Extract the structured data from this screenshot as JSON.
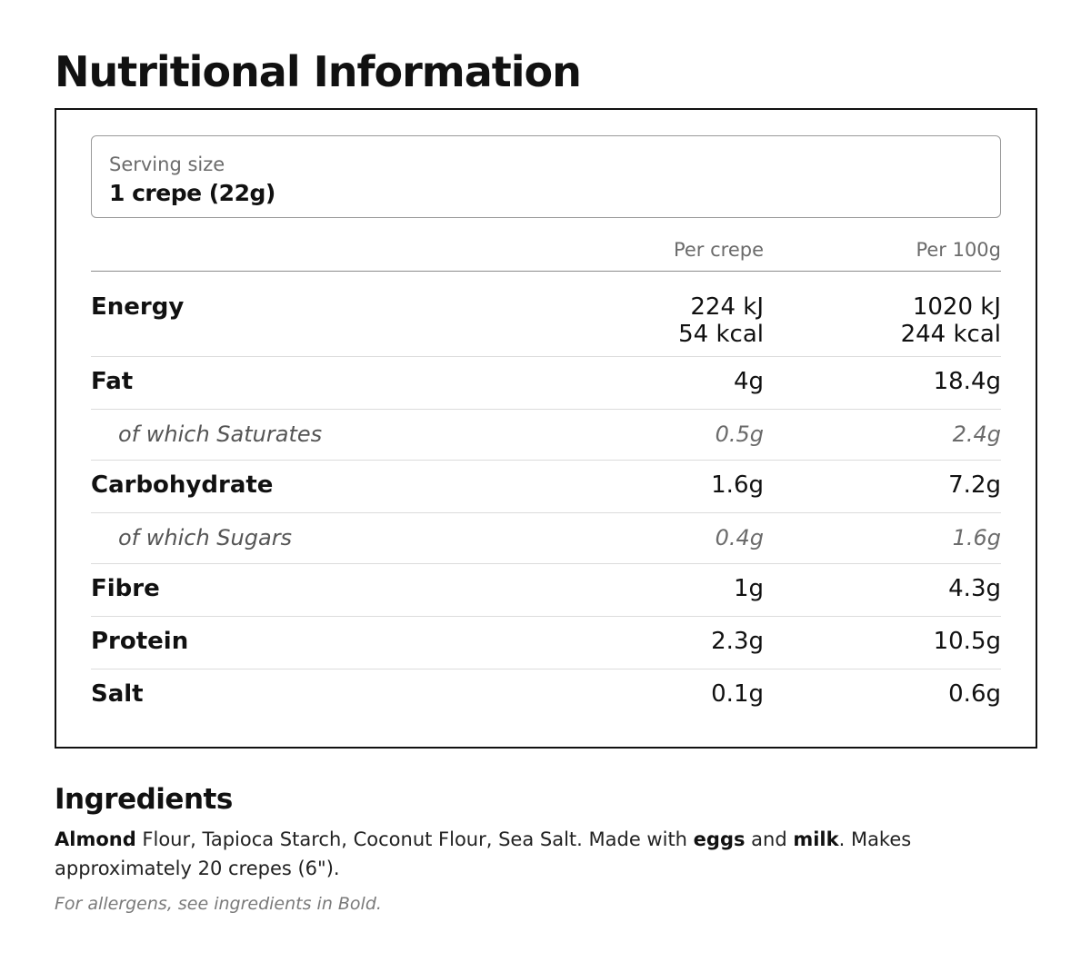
{
  "page_title": "Nutritional Information",
  "serving": {
    "label": "Serving size",
    "value": "1 crepe (22g)"
  },
  "table": {
    "col1_header": "Per crepe",
    "col2_header": "Per 100g",
    "energy": {
      "label": "Energy",
      "per_crepe_kj": "224 kJ",
      "per_crepe_kcal": "54 kcal",
      "per_100g_kj": "1020 kJ",
      "per_100g_kcal": "244 kcal"
    },
    "fat": {
      "label": "Fat",
      "per_crepe": "4g",
      "per_100g": "18.4g"
    },
    "saturates": {
      "label": "of which Saturates",
      "per_crepe": "0.5g",
      "per_100g": "2.4g"
    },
    "carbohydrate": {
      "label": "Carbohydrate",
      "per_crepe": "1.6g",
      "per_100g": "7.2g"
    },
    "sugars": {
      "label": "of which Sugars",
      "per_crepe": "0.4g",
      "per_100g": "1.6g"
    },
    "fibre": {
      "label": "Fibre",
      "per_crepe": "1g",
      "per_100g": "4.3g"
    },
    "protein": {
      "label": "Protein",
      "per_crepe": "2.3g",
      "per_100g": "10.5g"
    },
    "salt": {
      "label": "Salt",
      "per_crepe": "0.1g",
      "per_100g": "0.6g"
    }
  },
  "ingredients": {
    "title": "Ingredients",
    "allergen_1": "Almond",
    "text_1": " Flour, Tapioca Starch, Coconut Flour, Sea Salt. Made with ",
    "allergen_2": "eggs",
    "text_2": " and ",
    "allergen_3": "milk",
    "text_3": ". Makes approximately 20 crepes (6\").",
    "allergen_note": "For allergens, see ingredients in Bold."
  }
}
